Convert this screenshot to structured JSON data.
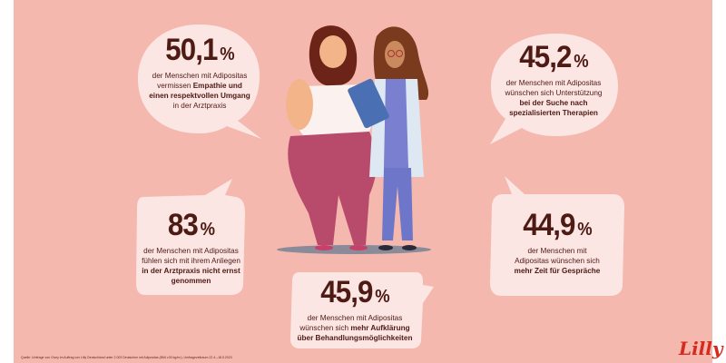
{
  "stats": [
    {
      "value": "50,1",
      "unit": "%",
      "lines": [
        [
          {
            "t": "der Menschen mit Adipositas",
            "b": false
          }
        ],
        [
          {
            "t": "vermissen ",
            "b": false
          },
          {
            "t": "Empathie und",
            "b": true
          }
        ],
        [
          {
            "t": "einen respektvollen Umgang",
            "b": true
          }
        ],
        [
          {
            "t": "in der Arztpraxis",
            "b": false
          }
        ]
      ]
    },
    {
      "value": "45,2",
      "unit": "%",
      "lines": [
        [
          {
            "t": "der Menschen mit Adipositas",
            "b": false
          }
        ],
        [
          {
            "t": "wünschen sich Unterstützung",
            "b": false
          }
        ],
        [
          {
            "t": "bei der Suche nach",
            "b": true
          }
        ],
        [
          {
            "t": "spezialisierten Therapien",
            "b": true
          }
        ]
      ]
    },
    {
      "value": "83",
      "unit": "%",
      "lines": [
        [
          {
            "t": "der Menschen mit Adipositas",
            "b": false
          }
        ],
        [
          {
            "t": "fühlen sich mit ihrem Anliegen",
            "b": false
          }
        ],
        [
          {
            "t": "in der Arztpraxis nicht ernst",
            "b": true
          }
        ],
        [
          {
            "t": "genommen",
            "b": true
          }
        ]
      ]
    },
    {
      "value": "44,9",
      "unit": "%",
      "lines": [
        [
          {
            "t": "der Menschen mit",
            "b": false
          }
        ],
        [
          {
            "t": "Adipositas wünschen sich",
            "b": false
          }
        ],
        [
          {
            "t": "mehr Zeit für Gespräche",
            "b": true
          }
        ]
      ]
    },
    {
      "value": "45,9",
      "unit": "%",
      "lines": [
        [
          {
            "t": "der Menschen mit Adipositas",
            "b": false
          }
        ],
        [
          {
            "t": "wünschen sich ",
            "b": false
          },
          {
            "t": "mehr Aufklärung",
            "b": true
          }
        ],
        [
          {
            "t": "über Behandlungsmöglichkeiten",
            "b": true
          }
        ]
      ]
    }
  ],
  "footer": "Quelle: Umfrage von Civey im Auftrag von Lilly Deutschland unter 2.003 Deutschen mit Adipositas (BMI ≥30 kg/m²), Umfragezeitraum 22.4.–18.5.2023",
  "logo": "Lilly",
  "colors": {
    "background": "#f5b8ae",
    "bubble": "#fbe6e3",
    "text": "#4e1a14",
    "logo": "#d52b1e"
  }
}
